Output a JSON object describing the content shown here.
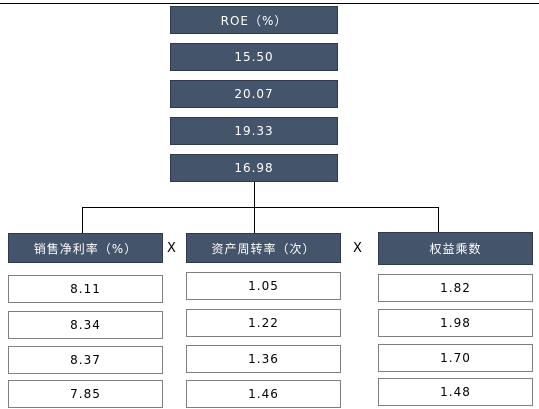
{
  "roe": {
    "header": "ROE（%）",
    "values": [
      "15.50",
      "20.07",
      "19.33",
      "16.98"
    ]
  },
  "columns": [
    {
      "header": "销售净利率（%）",
      "values": [
        "8.11",
        "8.34",
        "8.37",
        "7.85"
      ]
    },
    {
      "header": "资产周转率（次）",
      "values": [
        "1.05",
        "1.22",
        "1.36",
        "1.46"
      ]
    },
    {
      "header": "权益乘数",
      "values": [
        "1.82",
        "1.98",
        "1.70",
        "1.48"
      ]
    }
  ],
  "operators": [
    "X",
    "X"
  ],
  "colors": {
    "header_fill": "#44546a",
    "header_text": "#ffffff",
    "border": "#7f7f7f"
  }
}
